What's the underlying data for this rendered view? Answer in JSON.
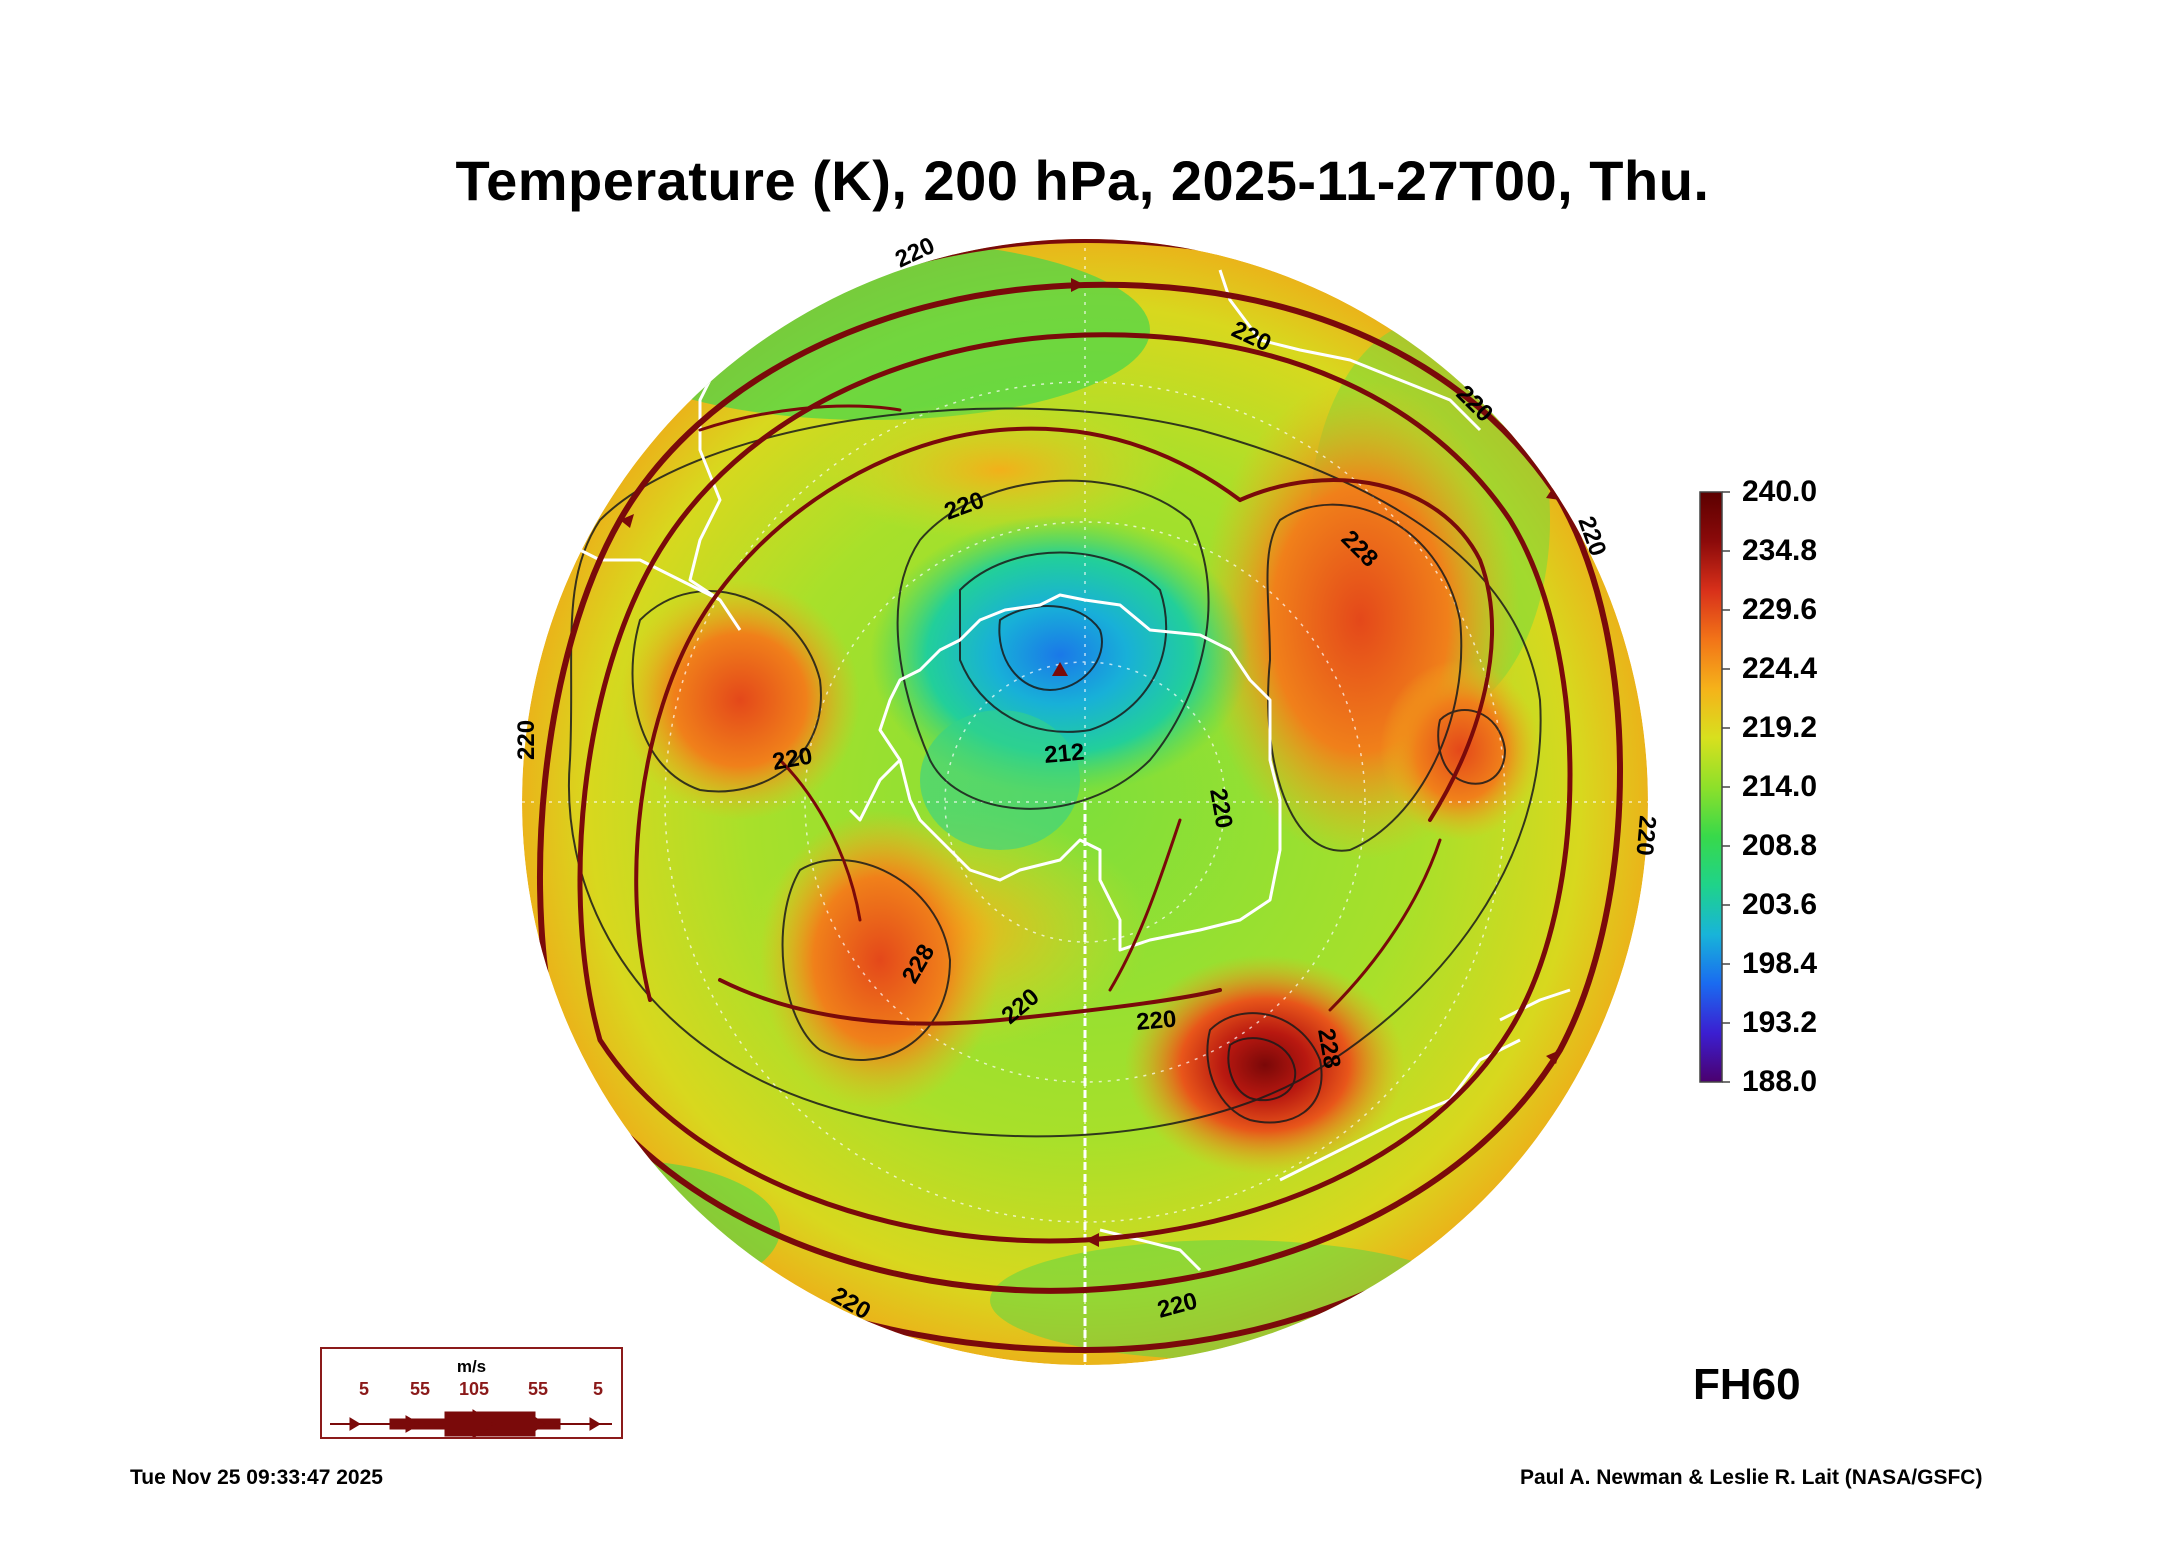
{
  "title": "Temperature (K), 200 hPa, 2025-11-27T00, Thu.",
  "colorbar": {
    "labels": [
      "240.0",
      "234.8",
      "229.6",
      "224.4",
      "219.2",
      "214.0",
      "208.8",
      "203.6",
      "198.4",
      "193.2",
      "188.0"
    ],
    "colors": [
      "#4b006e",
      "#3b1fd1",
      "#1a6bf0",
      "#18b4d9",
      "#1fd38a",
      "#38d94a",
      "#8ee02a",
      "#d8e01e",
      "#f5b21a",
      "#f27418",
      "#d8301a",
      "#8b0a0a",
      "#5c0000"
    ]
  },
  "contour_labels": [
    "220",
    "220",
    "220",
    "220",
    "220",
    "212",
    "228",
    "228",
    "220",
    "220",
    "220",
    "228",
    "220",
    "220",
    "220",
    "220",
    "220"
  ],
  "wind_legend": {
    "unit": "m/s",
    "values": [
      "5",
      "55",
      "105",
      "55",
      "5"
    ]
  },
  "forecast_hour": "FH60",
  "timestamp": "Tue Nov 25 09:33:47 2025",
  "credit": "Paul A. Newman & Leslie R. Lait (NASA/GSFC)",
  "colors": {
    "streamline": "#7a0a0a",
    "coastline": "#ffffff",
    "contour": "#1a1a1a"
  }
}
